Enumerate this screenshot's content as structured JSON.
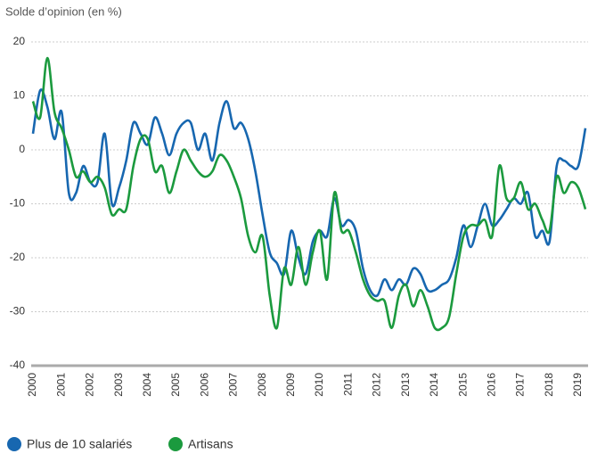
{
  "chart_data": {
    "type": "line",
    "title": "Solde d’opinion (en %)",
    "x": [
      2000,
      2000.25,
      2000.5,
      2000.75,
      2001,
      2001.25,
      2001.5,
      2001.75,
      2002,
      2002.25,
      2002.5,
      2002.75,
      2003,
      2003.25,
      2003.5,
      2003.75,
      2004,
      2004.25,
      2004.5,
      2004.75,
      2005,
      2005.25,
      2005.5,
      2005.75,
      2006,
      2006.25,
      2006.5,
      2006.75,
      2007,
      2007.25,
      2007.5,
      2007.75,
      2008,
      2008.25,
      2008.5,
      2008.75,
      2009,
      2009.25,
      2009.5,
      2009.75,
      2010,
      2010.25,
      2010.5,
      2010.75,
      2011,
      2011.25,
      2011.5,
      2011.75,
      2012,
      2012.25,
      2012.5,
      2012.75,
      2013,
      2013.25,
      2013.5,
      2013.75,
      2014,
      2014.25,
      2014.5,
      2014.75,
      2015,
      2015.25,
      2015.5,
      2015.75,
      2016,
      2016.25,
      2016.5,
      2016.75,
      2017,
      2017.25,
      2017.5,
      2017.75,
      2018,
      2018.25,
      2018.5,
      2018.75,
      2019,
      2019.25
    ],
    "series": [
      {
        "name": "Plus de 10 salariés",
        "color": "#1767b0",
        "values": [
          3,
          11,
          8,
          2,
          7,
          -8,
          -8,
          -3,
          -6,
          -6,
          3,
          -10,
          -7,
          -2,
          5,
          3,
          1,
          6,
          3,
          -1,
          3,
          5,
          5,
          0,
          3,
          -2,
          5,
          9,
          4,
          5,
          2,
          -4,
          -12,
          -19,
          -21,
          -23,
          -15,
          -20,
          -23,
          -17,
          -15,
          -16,
          -9,
          -14,
          -13,
          -15,
          -22,
          -26,
          -27,
          -24,
          -26,
          -24,
          -25,
          -22,
          -23,
          -26,
          -26,
          -25,
          -24,
          -20,
          -14,
          -18,
          -14,
          -10,
          -14,
          -13,
          -11,
          -9,
          -10,
          -8,
          -16,
          -15,
          -17,
          -3,
          -2,
          -3,
          -3,
          4
        ]
      },
      {
        "name": "Artisans",
        "color": "#1b9a3e",
        "values": [
          9,
          6,
          17,
          7,
          4,
          0,
          -5,
          -4,
          -6,
          -5,
          -7,
          -12,
          -11,
          -11,
          -3,
          2,
          2,
          -4,
          -3,
          -8,
          -4,
          0,
          -2,
          -4,
          -5,
          -4,
          -1,
          -2,
          -5,
          -9,
          -16,
          -19,
          -16,
          -27,
          -33,
          -22,
          -25,
          -18,
          -25,
          -19,
          -15,
          -24,
          -8,
          -15,
          -15,
          -19,
          -24,
          -27,
          -28,
          -28,
          -33,
          -27,
          -25,
          -29,
          -26,
          -29,
          -33,
          -33,
          -31,
          -23,
          -16,
          -14,
          -14,
          -13,
          -16,
          -3,
          -9,
          -9,
          -6,
          -11,
          -10,
          -13,
          -15,
          -5,
          -8,
          -6,
          -7,
          -11
        ]
      }
    ],
    "xlim": [
      2000,
      2019.25
    ],
    "xticks": [
      2000,
      2001,
      2002,
      2003,
      2004,
      2005,
      2006,
      2007,
      2008,
      2009,
      2010,
      2011,
      2012,
      2013,
      2014,
      2015,
      2016,
      2017,
      2018,
      2019
    ],
    "ylim": [
      -40,
      20
    ],
    "yticks": [
      -40,
      -30,
      -20,
      -10,
      0,
      10,
      20
    ],
    "grid": true
  }
}
